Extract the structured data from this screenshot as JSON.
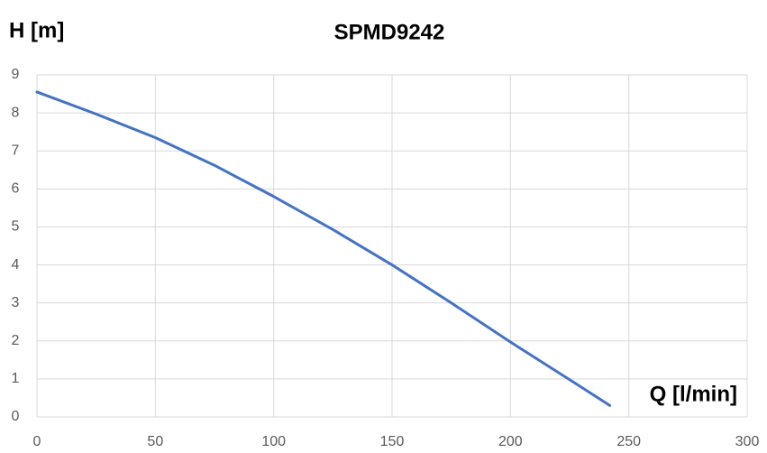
{
  "chart_data": {
    "type": "line",
    "title": "SPMD9242",
    "y_label": "H [m]",
    "x_label": "Q [l/min]",
    "x": [
      0,
      25,
      50,
      75,
      100,
      125,
      150,
      175,
      200,
      225,
      242
    ],
    "series": [
      {
        "name": "SPMD9242",
        "color": "#4472c4",
        "values": [
          8.55,
          7.97,
          7.35,
          6.62,
          5.8,
          4.93,
          4.0,
          3.0,
          1.97,
          0.98,
          0.3
        ]
      }
    ],
    "xlim": [
      0,
      300
    ],
    "xticks": [
      0,
      50,
      100,
      150,
      200,
      250,
      300
    ],
    "ylim": [
      0,
      9
    ],
    "yticks": [
      0,
      1,
      2,
      3,
      4,
      5,
      6,
      7,
      8,
      9
    ],
    "grid": true
  }
}
